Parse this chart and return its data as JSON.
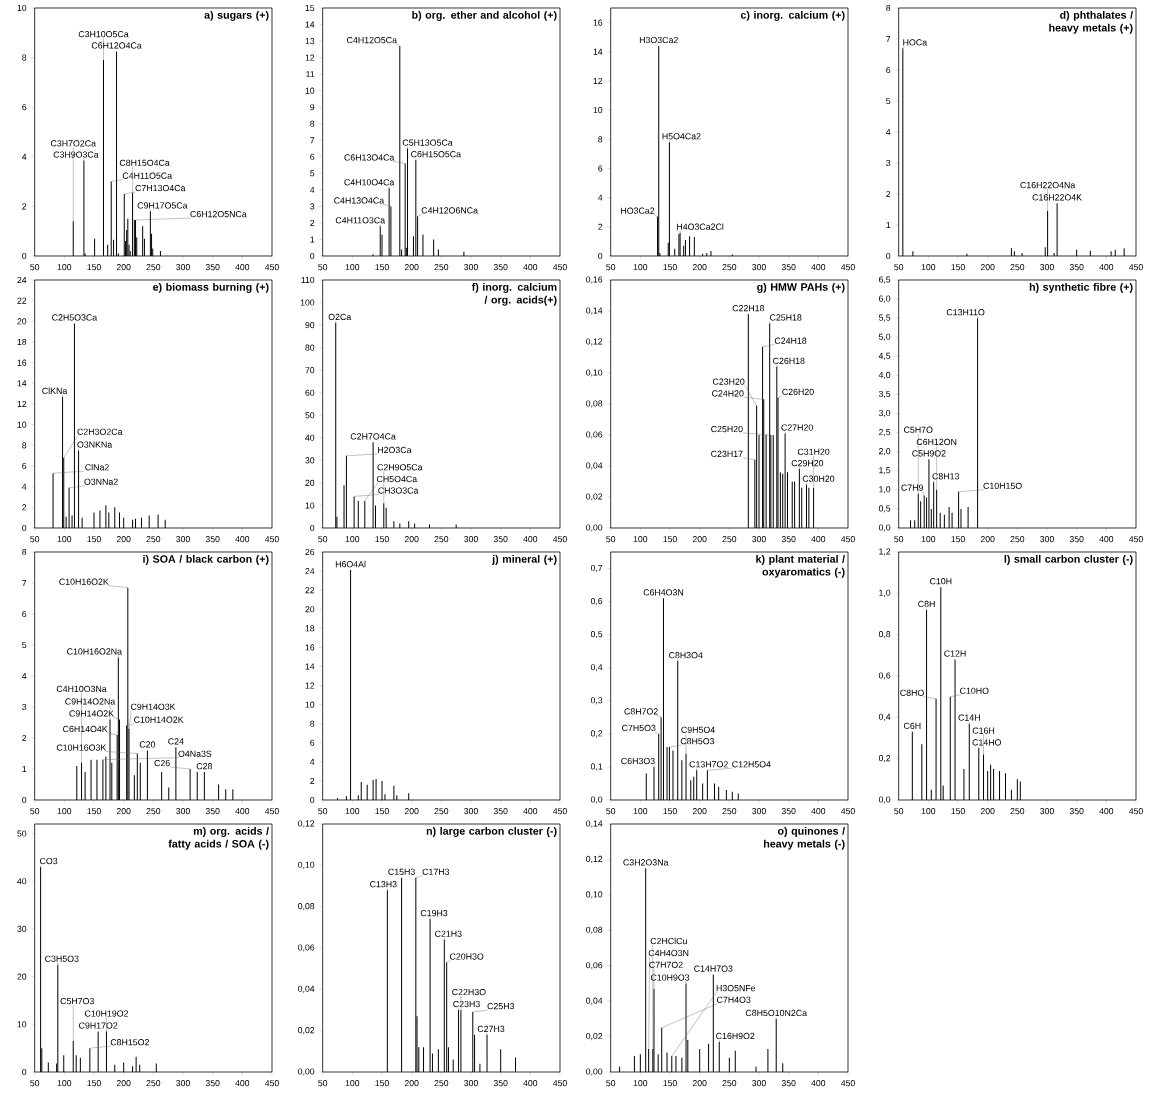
{
  "chart_data": [
    {
      "type": "bar",
      "title": "a) sugars (+)",
      "color": "#000000",
      "xlim": [
        50,
        450
      ],
      "xticks": [
        50,
        100,
        150,
        200,
        250,
        300,
        350,
        400,
        450
      ],
      "ylim": [
        0,
        10
      ],
      "yticks": [
        0,
        2,
        4,
        6,
        8,
        10
      ],
      "x": [
        115,
        133,
        135,
        151,
        166,
        173,
        179,
        183,
        188,
        191,
        201,
        203,
        205,
        207,
        209,
        211,
        215,
        218,
        220,
        222,
        232,
        235,
        245,
        247,
        249,
        262
      ],
      "values": [
        1.4,
        3.85,
        0.1,
        0.7,
        7.9,
        0.45,
        3.0,
        0.65,
        8.25,
        0.1,
        2.5,
        0.6,
        1.05,
        1.5,
        0.45,
        0.2,
        2.55,
        1.45,
        1.45,
        0.75,
        1.2,
        0.7,
        1.8,
        0.9,
        0.3,
        0.2
      ],
      "annotations": [
        {
          "text": "C3H7O2Ca",
          "x": 115,
          "y": 1.4
        },
        {
          "text": "C3H9O3Ca",
          "x": 133,
          "y": 3.85
        },
        {
          "text": "C3H10O5Ca",
          "x": 166,
          "y": 7.9
        },
        {
          "text": "C4H11O5Ca",
          "x": 179,
          "y": 3.0
        },
        {
          "text": "C6H12O4Ca",
          "x": 188,
          "y": 8.25
        },
        {
          "text": "C7H13O4Ca",
          "x": 201,
          "y": 2.5
        },
        {
          "text": "C8H15O4Ca",
          "x": 215,
          "y": 2.55
        },
        {
          "text": "C9H17O5Ca",
          "x": 245,
          "y": 1.8
        },
        {
          "text": "C6H12O5NCa",
          "x": 218,
          "y": 1.45
        }
      ]
    },
    {
      "type": "bar",
      "title": "b) org. ether and alcohol (+)",
      "color": "#000000",
      "xlim": [
        50,
        450
      ],
      "xticks": [
        50,
        100,
        150,
        200,
        250,
        300,
        350,
        400,
        450
      ],
      "ylim": [
        0,
        15
      ],
      "yticks": [
        0,
        1,
        2,
        3,
        4,
        5,
        6,
        7,
        8,
        9,
        10,
        11,
        12,
        13,
        14,
        15
      ],
      "x": [
        135,
        147,
        150,
        162,
        165,
        180,
        183,
        189,
        191,
        193,
        203,
        207,
        210,
        219,
        237,
        245,
        288
      ],
      "values": [
        0.1,
        1.8,
        1.3,
        4.1,
        3.0,
        12.7,
        0.4,
        5.6,
        0.5,
        6.5,
        1.2,
        5.8,
        2.4,
        1.3,
        1.0,
        0.4,
        0.25
      ],
      "annotations": [
        {
          "text": "C4H11O3Ca",
          "x": 147,
          "y": 1.8
        },
        {
          "text": "C4H13O4Ca",
          "x": 165,
          "y": 3.0
        },
        {
          "text": "C4H10O4Ca",
          "x": 162,
          "y": 4.1
        },
        {
          "text": "C4H12O5Ca",
          "x": 180,
          "y": 12.7
        },
        {
          "text": "C6H13O4Ca",
          "x": 189,
          "y": 5.6
        },
        {
          "text": "C5H13O5Ca",
          "x": 193,
          "y": 6.5
        },
        {
          "text": "C6H15O5Ca",
          "x": 207,
          "y": 5.8
        },
        {
          "text": "C4H12O6NCa",
          "x": 210,
          "y": 2.4
        }
      ]
    },
    {
      "type": "bar",
      "title": "c) inorg. calcium (+)",
      "color": "#000000",
      "xlim": [
        50,
        450
      ],
      "xticks": [
        50,
        100,
        150,
        200,
        250,
        300,
        350,
        400,
        450
      ],
      "ylim": [
        0,
        17
      ],
      "yticks": [
        0,
        2,
        4,
        6,
        8,
        10,
        12,
        14,
        16
      ],
      "x": [
        129,
        131,
        133,
        147,
        149,
        158,
        165,
        167,
        173,
        176,
        183,
        191,
        205,
        212,
        219,
        255
      ],
      "values": [
        2.7,
        14.4,
        0.2,
        0.9,
        7.8,
        0.5,
        1.5,
        1.6,
        0.7,
        1.1,
        1.35,
        1.3,
        0.15,
        0.2,
        0.35,
        0.1
      ],
      "annotations": [
        {
          "text": "HO3Ca2",
          "x": 129,
          "y": 2.7
        },
        {
          "text": "H3O3Ca2",
          "x": 131,
          "y": 14.4
        },
        {
          "text": "H5O4Ca2",
          "x": 149,
          "y": 7.8
        },
        {
          "text": "H4O3Ca2Cl",
          "x": 167,
          "y": 1.6
        }
      ]
    },
    {
      "type": "bar",
      "title": "d) phthalates / heavy metals (+)",
      "color": "#000000",
      "xlim": [
        50,
        450
      ],
      "xticks": [
        50,
        100,
        150,
        200,
        250,
        300,
        350,
        400,
        450
      ],
      "ylim": [
        0,
        8
      ],
      "yticks": [
        0,
        1,
        2,
        3,
        4,
        5,
        6,
        7,
        8
      ],
      "x": [
        57,
        74,
        165,
        240,
        245,
        258,
        297,
        301,
        312,
        317,
        350,
        373,
        408,
        415,
        430
      ],
      "values": [
        6.7,
        0.15,
        0.07,
        0.25,
        0.15,
        0.1,
        0.28,
        1.45,
        0.1,
        1.7,
        0.2,
        0.17,
        0.15,
        0.2,
        0.25
      ],
      "annotations": [
        {
          "text": "HOCa",
          "x": 57,
          "y": 6.7
        },
        {
          "text": "C16H22O4Na",
          "x": 301,
          "y": 1.45
        },
        {
          "text": "C16H22O4K",
          "x": 317,
          "y": 1.7
        }
      ]
    },
    {
      "type": "bar",
      "title": "e) biomass burning (+)",
      "color": "#000000",
      "xlim": [
        50,
        450
      ],
      "xticks": [
        50,
        100,
        150,
        200,
        250,
        300,
        350,
        400,
        450
      ],
      "ylim": [
        0,
        24
      ],
      "yticks": [
        0,
        2,
        4,
        6,
        8,
        10,
        12,
        14,
        16,
        18,
        20,
        22,
        24
      ],
      "x": [
        81,
        97,
        99,
        103,
        108,
        113,
        117,
        124,
        130,
        150,
        160,
        170,
        175,
        185,
        193,
        200,
        215,
        220,
        230,
        243,
        258,
        270
      ],
      "values": [
        5.3,
        12.7,
        6.8,
        1.1,
        3.9,
        1.2,
        19.8,
        7.5,
        1.0,
        1.5,
        1.7,
        2.2,
        1.5,
        2.0,
        1.5,
        1.0,
        0.8,
        0.9,
        1.0,
        1.2,
        1.3,
        0.8
      ],
      "annotations": [
        {
          "text": "ClNa2",
          "x": 81,
          "y": 5.3
        },
        {
          "text": "ClKNa",
          "x": 97,
          "y": 12.7
        },
        {
          "text": "C2H5O3Ca",
          "x": 117,
          "y": 19.8
        },
        {
          "text": "C2H3O2Ca",
          "x": 99,
          "y": 6.8
        },
        {
          "text": "O3NKNa",
          "x": 124,
          "y": 7.5
        },
        {
          "text": "O3NNa2",
          "x": 108,
          "y": 3.9
        }
      ]
    },
    {
      "type": "bar",
      "title": "f) inorg. calcium / org. acids(+)",
      "color": "#000000",
      "xlim": [
        50,
        450
      ],
      "xticks": [
        50,
        100,
        150,
        200,
        250,
        300,
        350,
        400,
        450
      ],
      "ylim": [
        0,
        110
      ],
      "yticks": [
        0,
        10,
        20,
        30,
        40,
        50,
        60,
        70,
        80,
        90,
        100,
        110
      ],
      "x": [
        72,
        74,
        86,
        90,
        103,
        110,
        121,
        135,
        139,
        153,
        157,
        170,
        180,
        195,
        205,
        230,
        275
      ],
      "values": [
        91,
        5,
        19,
        32,
        14,
        12,
        12,
        38,
        10,
        11,
        9,
        3,
        2,
        3,
        2,
        1.5,
        1.5
      ],
      "annotations": [
        {
          "text": "O2Ca",
          "x": 72,
          "y": 91
        },
        {
          "text": "H2O3Ca",
          "x": 90,
          "y": 32
        },
        {
          "text": "C2H7O4Ca",
          "x": 135,
          "y": 38
        },
        {
          "text": "CH3O3Ca",
          "x": 103,
          "y": 14
        },
        {
          "text": "CH5O4Ca",
          "x": 121,
          "y": 12
        },
        {
          "text": "C2H9O5Ca",
          "x": 153,
          "y": 11
        }
      ]
    },
    {
      "type": "bar",
      "title": "g) HMW PAHs (+)",
      "color": "#000000",
      "xlim": [
        50,
        450
      ],
      "xticks": [
        50,
        100,
        150,
        200,
        250,
        300,
        350,
        400,
        450
      ],
      "ylim": [
        0,
        0.16
      ],
      "yticks": [
        {
          "value": 0,
          "label": "0,00"
        },
        {
          "value": 0.02,
          "label": "0,02"
        },
        {
          "value": 0.04,
          "label": "0,04"
        },
        {
          "value": 0.06,
          "label": "0,06"
        },
        {
          "value": 0.08,
          "label": "0,08"
        },
        {
          "value": 0.1,
          "label": "0,10"
        },
        {
          "value": 0.12,
          "label": "0,12"
        },
        {
          "value": 0.14,
          "label": "0,14"
        },
        {
          "value": 0.16,
          "label": "0,16"
        }
      ],
      "x": [
        282,
        293,
        296,
        300,
        306,
        308,
        312,
        318,
        320,
        324,
        330,
        332,
        336,
        340,
        344,
        348,
        356,
        360,
        368,
        372,
        380,
        384,
        392
      ],
      "values": [
        0.138,
        0.044,
        0.079,
        0.06,
        0.117,
        0.083,
        0.06,
        0.132,
        0.06,
        0.06,
        0.104,
        0.084,
        0.036,
        0.035,
        0.061,
        0.036,
        0.03,
        0.03,
        0.038,
        0.026,
        0.028,
        0.026,
        0.026
      ],
      "annotations": [
        {
          "text": "C22H18",
          "x": 282,
          "y": 0.138
        },
        {
          "text": "C25H18",
          "x": 318,
          "y": 0.132
        },
        {
          "text": "C24H18",
          "x": 306,
          "y": 0.117
        },
        {
          "text": "C26H18",
          "x": 330,
          "y": 0.104
        },
        {
          "text": "C24H20",
          "x": 308,
          "y": 0.083
        },
        {
          "text": "C26H20",
          "x": 332,
          "y": 0.084
        },
        {
          "text": "C23H20",
          "x": 296,
          "y": 0.079
        },
        {
          "text": "C25H20",
          "x": 320,
          "y": 0.06
        },
        {
          "text": "C27H20",
          "x": 344,
          "y": 0.061
        },
        {
          "text": "C23H17",
          "x": 293,
          "y": 0.044
        },
        {
          "text": "C29H20",
          "x": 368,
          "y": 0.038
        },
        {
          "text": "C30H20",
          "x": 380,
          "y": 0.028
        },
        {
          "text": "C31H20",
          "x": 392,
          "y": 0.026
        }
      ]
    },
    {
      "type": "bar",
      "title": "h) synthetic fibre (+)",
      "color": "#000000",
      "xlim": [
        50,
        450
      ],
      "xticks": [
        50,
        100,
        150,
        200,
        250,
        300,
        350,
        400,
        450
      ],
      "ylim": [
        0,
        6.5
      ],
      "yticks": [
        {
          "value": 0,
          "label": "0,0"
        },
        {
          "value": 0.5,
          "label": "0,5"
        },
        {
          "value": 1,
          "label": "1,0"
        },
        {
          "value": 1.5,
          "label": "1,5"
        },
        {
          "value": 2,
          "label": "2,0"
        },
        {
          "value": 2.5,
          "label": "2,5"
        },
        {
          "value": 3,
          "label": "3,0"
        },
        {
          "value": 3.5,
          "label": "3,5"
        },
        {
          "value": 4,
          "label": "4,0"
        },
        {
          "value": 4.5,
          "label": "4,5"
        },
        {
          "value": 5,
          "label": "5,0"
        },
        {
          "value": 5.5,
          "label": "5,5"
        },
        {
          "value": 6,
          "label": "6,0"
        },
        {
          "value": 6.5,
          "label": "6,5"
        }
      ],
      "x": [
        70,
        77,
        83,
        87,
        93,
        97,
        101,
        105,
        109,
        114,
        120,
        127,
        135,
        140,
        151,
        155,
        167,
        183
      ],
      "values": [
        0.2,
        0.2,
        0.9,
        0.7,
        0.85,
        0.8,
        1.8,
        0.5,
        1.2,
        1.0,
        0.4,
        0.35,
        0.55,
        0.4,
        0.95,
        0.5,
        0.55,
        5.5
      ],
      "annotations": [
        {
          "text": "C5H7O",
          "x": 83,
          "y": 0.9
        },
        {
          "text": "C7H9",
          "x": 93,
          "y": 0.85
        },
        {
          "text": "C5H9O2",
          "x": 101,
          "y": 1.8
        },
        {
          "text": "C8H13",
          "x": 109,
          "y": 1.2
        },
        {
          "text": "C6H12ON",
          "x": 114,
          "y": 1.0
        },
        {
          "text": "C10H15O",
          "x": 151,
          "y": 0.95
        },
        {
          "text": "C13H11O",
          "x": 183,
          "y": 5.5
        }
      ]
    },
    {
      "type": "bar",
      "title": "i) SOA / black carbon (+)",
      "color": "#000000",
      "xlim": [
        50,
        450
      ],
      "xticks": [
        50,
        100,
        150,
        200,
        250,
        300,
        350,
        400,
        450
      ],
      "ylim": [
        0,
        8
      ],
      "yticks": [
        0,
        1,
        2,
        3,
        4,
        5,
        6,
        7,
        8
      ],
      "x": [
        121,
        129,
        135,
        145,
        155,
        165,
        170,
        177,
        180,
        189,
        191,
        193,
        205,
        207,
        209,
        218,
        223,
        228,
        240,
        264,
        276,
        288,
        312,
        324,
        336,
        360,
        372,
        384
      ],
      "values": [
        1.1,
        1.2,
        0.9,
        1.3,
        1.3,
        1.3,
        1.4,
        2.6,
        1.2,
        2.1,
        4.6,
        2.6,
        2.4,
        6.85,
        2.3,
        0.8,
        1.5,
        1.2,
        1.6,
        0.9,
        0.4,
        1.7,
        1.0,
        0.9,
        0.9,
        0.5,
        0.35,
        0.35
      ],
      "annotations": [
        {
          "text": "C4H10O3Na",
          "x": 129,
          "y": 1.2
        },
        {
          "text": "O4Na3S",
          "x": 165,
          "y": 1.3
        },
        {
          "text": "C6H14O4K",
          "x": 189,
          "y": 2.1
        },
        {
          "text": "C9H14O2K",
          "x": 193,
          "y": 2.6
        },
        {
          "text": "C9H14O2Na",
          "x": 177,
          "y": 2.6
        },
        {
          "text": "C10H16O2Na",
          "x": 191,
          "y": 4.6
        },
        {
          "text": "C10H16O2K",
          "x": 207,
          "y": 6.85
        },
        {
          "text": "C10H14O2K",
          "x": 205,
          "y": 2.4
        },
        {
          "text": "C9H14O3K",
          "x": 209,
          "y": 2.3
        },
        {
          "text": "C10H16O3K",
          "x": 223,
          "y": 1.5
        },
        {
          "text": "C20",
          "x": 240,
          "y": 1.6
        },
        {
          "text": "C24",
          "x": 288,
          "y": 1.7
        },
        {
          "text": "C26",
          "x": 312,
          "y": 1.0
        },
        {
          "text": "C28",
          "x": 336,
          "y": 0.9
        }
      ]
    },
    {
      "type": "bar",
      "title": "j) mineral (+)",
      "color": "#000000",
      "xlim": [
        50,
        450
      ],
      "xticks": [
        50,
        100,
        150,
        200,
        250,
        300,
        350,
        400,
        450
      ],
      "ylim": [
        0,
        26
      ],
      "yticks": [
        0,
        2,
        4,
        6,
        8,
        10,
        12,
        14,
        16,
        18,
        20,
        22,
        24,
        26
      ],
      "x": [
        75,
        90,
        97,
        110,
        115,
        125,
        135,
        140,
        150,
        155,
        170,
        175,
        195
      ],
      "values": [
        0.2,
        0.4,
        24.1,
        0.5,
        1.9,
        1.6,
        2.1,
        2.2,
        2.0,
        0.6,
        1.5,
        0.5,
        0.7
      ],
      "annotations": [
        {
          "text": "H6O4Al",
          "x": 97,
          "y": 24.1
        }
      ]
    },
    {
      "type": "bar",
      "title": "k) plant material / oxyaromatics (-)",
      "color": "#000000",
      "xlim": [
        50,
        450
      ],
      "xticks": [
        50,
        100,
        150,
        200,
        250,
        300,
        350,
        400,
        450
      ],
      "ylim": [
        0,
        0.75
      ],
      "yticks": [
        {
          "value": 0,
          "label": "0,0"
        },
        {
          "value": 0.1,
          "label": "0,1"
        },
        {
          "value": 0.2,
          "label": "0,2"
        },
        {
          "value": 0.3,
          "label": "0,3"
        },
        {
          "value": 0.4,
          "label": "0,4"
        },
        {
          "value": 0.5,
          "label": "0,5"
        },
        {
          "value": 0.6,
          "label": "0,6"
        },
        {
          "value": 0.7,
          "label": "0,7"
        }
      ],
      "x": [
        110,
        123,
        131,
        135,
        139,
        145,
        149,
        155,
        163,
        170,
        177,
        185,
        190,
        195,
        205,
        213,
        225,
        232,
        245,
        255,
        265
      ],
      "values": [
        0.08,
        0.1,
        0.2,
        0.25,
        0.61,
        0.16,
        0.16,
        0.15,
        0.42,
        0.12,
        0.14,
        0.06,
        0.07,
        0.09,
        0.05,
        0.09,
        0.05,
        0.04,
        0.03,
        0.025,
        0.02
      ],
      "annotations": [
        {
          "text": "C6H3O3",
          "x": 123,
          "y": 0.1
        },
        {
          "text": "C7H5O3",
          "x": 131,
          "y": 0.2
        },
        {
          "text": "C6H4O3N",
          "x": 139,
          "y": 0.61
        },
        {
          "text": "C8H7O2",
          "x": 135,
          "y": 0.25
        },
        {
          "text": "C8H3O4",
          "x": 163,
          "y": 0.42
        },
        {
          "text": "C8H5O3",
          "x": 149,
          "y": 0.16
        },
        {
          "text": "C9H5O4",
          "x": 177,
          "y": 0.14
        },
        {
          "text": "C13H7O2",
          "x": 195,
          "y": 0.09
        },
        {
          "text": "C12H5O4",
          "x": 213,
          "y": 0.09
        }
      ]
    },
    {
      "type": "bar",
      "title": "l) small carbon cluster (-)",
      "color": "#000000",
      "xlim": [
        50,
        450
      ],
      "xticks": [
        50,
        100,
        150,
        200,
        250,
        300,
        350,
        400,
        450
      ],
      "ylim": [
        0,
        1.2
      ],
      "yticks": [
        {
          "value": 0,
          "label": "0,0"
        },
        {
          "value": 0.2,
          "label": "0,2"
        },
        {
          "value": 0.4,
          "label": "0,4"
        },
        {
          "value": 0.6,
          "label": "0,6"
        },
        {
          "value": 0.8,
          "label": "0,8"
        },
        {
          "value": 1,
          "label": "1,0"
        },
        {
          "value": 1.2,
          "label": "1,2"
        }
      ],
      "x": [
        73,
        89,
        97,
        105,
        113,
        121,
        125,
        137,
        145,
        160,
        169,
        185,
        193,
        200,
        205,
        210,
        220,
        230,
        240,
        250,
        255
      ],
      "values": [
        0.33,
        0.27,
        0.92,
        0.05,
        0.49,
        1.03,
        0.07,
        0.5,
        0.68,
        0.15,
        0.37,
        0.25,
        0.22,
        0.14,
        0.17,
        0.15,
        0.14,
        0.13,
        0.05,
        0.1,
        0.09
      ],
      "annotations": [
        {
          "text": "C6H",
          "x": 73,
          "y": 0.33
        },
        {
          "text": "C8H",
          "x": 97,
          "y": 0.92
        },
        {
          "text": "C10H",
          "x": 121,
          "y": 1.03
        },
        {
          "text": "C8HO",
          "x": 113,
          "y": 0.49
        },
        {
          "text": "C12H",
          "x": 145,
          "y": 0.68
        },
        {
          "text": "C10HO",
          "x": 137,
          "y": 0.5
        },
        {
          "text": "C14H",
          "x": 169,
          "y": 0.37
        },
        {
          "text": "C14HO",
          "x": 185,
          "y": 0.25
        },
        {
          "text": "C16H",
          "x": 193,
          "y": 0.22
        }
      ]
    },
    {
      "type": "bar",
      "title": "m) org. acids / fatty acids / SOA (-)",
      "color": "#000000",
      "xlim": [
        50,
        450
      ],
      "xticks": [
        50,
        100,
        150,
        200,
        250,
        300,
        350,
        400,
        450
      ],
      "ylim": [
        0,
        52
      ],
      "yticks": [
        0,
        10,
        20,
        30,
        40,
        50
      ],
      "x": [
        60,
        62,
        73,
        87,
        89,
        99,
        115,
        120,
        127,
        143,
        157,
        171,
        185,
        200,
        215,
        221,
        227,
        255
      ],
      "values": [
        43,
        5,
        2,
        1.8,
        22.5,
        3.5,
        6.5,
        3.5,
        3,
        5,
        8.5,
        8.5,
        1.5,
        2,
        1.2,
        3.2,
        1.5,
        1.8
      ],
      "annotations": [
        {
          "text": "CO3",
          "x": 60,
          "y": 43
        },
        {
          "text": "C3H5O3",
          "x": 89,
          "y": 22.5
        },
        {
          "text": "C5H7O3",
          "x": 115,
          "y": 6.5
        },
        {
          "text": "C8H15O2",
          "x": 143,
          "y": 5
        },
        {
          "text": "C9H17O2",
          "x": 157,
          "y": 8.5
        },
        {
          "text": "C10H19O2",
          "x": 171,
          "y": 8.5
        }
      ]
    },
    {
      "type": "bar",
      "title": "n) large carbon cluster (-)",
      "color": "#000000",
      "xlim": [
        50,
        450
      ],
      "xticks": [
        50,
        100,
        150,
        200,
        250,
        300,
        350,
        400,
        450
      ],
      "ylim": [
        0,
        0.12
      ],
      "yticks": [
        {
          "value": 0,
          "label": "0,00"
        },
        {
          "value": 0.02,
          "label": "0,02"
        },
        {
          "value": 0.04,
          "label": "0,04"
        },
        {
          "value": 0.06,
          "label": "0,06"
        },
        {
          "value": 0.08,
          "label": "0,08"
        },
        {
          "value": 0.1,
          "label": "0,10"
        },
        {
          "value": 0.12,
          "label": "0,12"
        }
      ],
      "x": [
        159,
        183,
        207,
        209,
        212,
        220,
        231,
        235,
        245,
        255,
        259,
        262,
        270,
        279,
        283,
        303,
        306,
        315,
        327,
        350,
        375
      ],
      "values": [
        0.088,
        0.094,
        0.094,
        0.027,
        0.012,
        0.012,
        0.074,
        0.009,
        0.011,
        0.064,
        0.053,
        0.012,
        0.006,
        0.03,
        0.03,
        0.029,
        0.018,
        0.004,
        0.018,
        0.011,
        0.007
      ],
      "annotations": [
        {
          "text": "C13H3",
          "x": 159,
          "y": 0.088
        },
        {
          "text": "C15H3",
          "x": 183,
          "y": 0.094
        },
        {
          "text": "C17H3",
          "x": 207,
          "y": 0.094
        },
        {
          "text": "C19H3",
          "x": 231,
          "y": 0.074
        },
        {
          "text": "C21H3",
          "x": 255,
          "y": 0.064
        },
        {
          "text": "C20H3O",
          "x": 259,
          "y": 0.053
        },
        {
          "text": "C23H3",
          "x": 279,
          "y": 0.03
        },
        {
          "text": "C22H3O",
          "x": 283,
          "y": 0.03
        },
        {
          "text": "C25H3",
          "x": 303,
          "y": 0.029
        },
        {
          "text": "C27H3",
          "x": 327,
          "y": 0.018
        }
      ]
    },
    {
      "type": "bar",
      "title": "o) quinones / heavy metals (-)",
      "color": "#000000",
      "xlim": [
        50,
        450
      ],
      "xticks": [
        50,
        100,
        150,
        200,
        250,
        300,
        350,
        400,
        450
      ],
      "ylim": [
        0,
        0.14
      ],
      "yticks": [
        {
          "value": 0,
          "label": "0,00"
        },
        {
          "value": 0.02,
          "label": "0,02"
        },
        {
          "value": 0.04,
          "label": "0,04"
        },
        {
          "value": 0.06,
          "label": "0,06"
        },
        {
          "value": 0.08,
          "label": "0,08"
        },
        {
          "value": 0.1,
          "label": "0,10"
        },
        {
          "value": 0.12,
          "label": "0,12"
        },
        {
          "value": 0.14,
          "label": "0,14"
        }
      ],
      "x": [
        65,
        90,
        100,
        109,
        114,
        121,
        123,
        130,
        136,
        145,
        153,
        160,
        170,
        177,
        180,
        200,
        215,
        223,
        233,
        250,
        260,
        295,
        315,
        329,
        340
      ],
      "values": [
        0.003,
        0.009,
        0.01,
        0.115,
        0.013,
        0.013,
        0.047,
        0.01,
        0.025,
        0.011,
        0.009,
        0.009,
        0.008,
        0.05,
        0.018,
        0.013,
        0.016,
        0.055,
        0.017,
        0.008,
        0.012,
        0.003,
        0.013,
        0.03,
        0.005
      ],
      "annotations": [
        {
          "text": "C3H2O3Na",
          "x": 109,
          "y": 0.115
        },
        {
          "text": "C4H4O3N",
          "x": 114,
          "y": 0.013
        },
        {
          "text": "C2HClCu",
          "x": 121,
          "y": 0.013
        },
        {
          "text": "H3O5NFe",
          "x": 153,
          "y": 0.009
        },
        {
          "text": "C7H7O2",
          "x": 123,
          "y": 0.047
        },
        {
          "text": "C7H4O3",
          "x": 136,
          "y": 0.025
        },
        {
          "text": "C10H9O3",
          "x": 177,
          "y": 0.05
        },
        {
          "text": "C14H7O3",
          "x": 223,
          "y": 0.055
        },
        {
          "text": "C16H9O2",
          "x": 233,
          "y": 0.017
        },
        {
          "text": "C8H5O10N2Ca",
          "x": 329,
          "y": 0.03
        }
      ]
    }
  ]
}
